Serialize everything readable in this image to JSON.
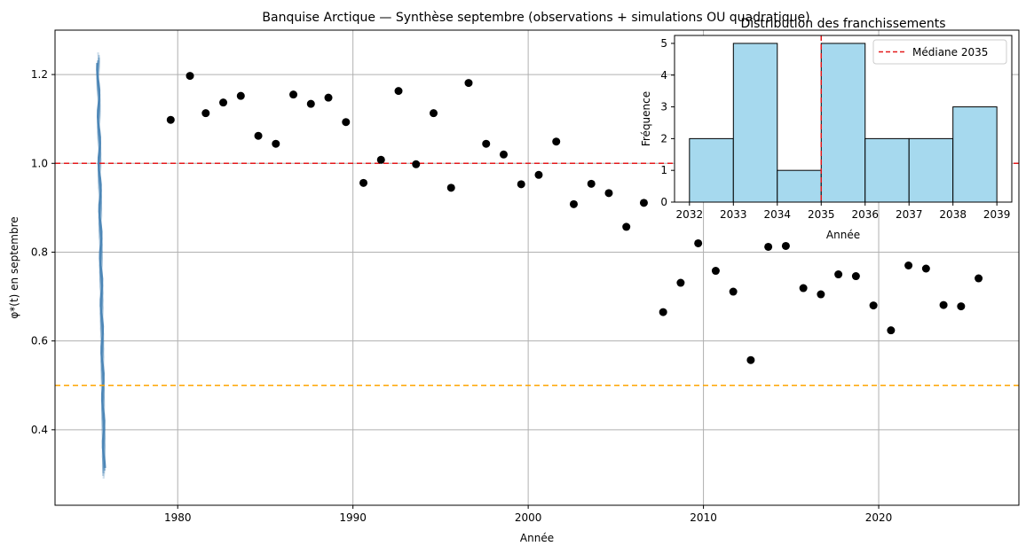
{
  "chart_data": [
    {
      "type": "scatter",
      "title": "Banquise Arctique — Synthèse septembre (observations + simulations OU quadratique)",
      "xlabel": "Année",
      "ylabel": "φ*(t) en septembre",
      "xlim": [
        1973,
        2028
      ],
      "ylim": [
        0.23,
        1.3
      ],
      "xticks": [
        "1980",
        "1990",
        "2000",
        "2010",
        "2020"
      ],
      "yticks": [
        "0.4",
        "0.6",
        "0.8",
        "1.0",
        "1.2"
      ],
      "grid": true,
      "hlines": [
        {
          "y": 1.0,
          "color": "#e41a1c",
          "style": "dashed"
        },
        {
          "y": 0.5,
          "color": "#ffa500",
          "style": "dashed"
        }
      ],
      "simulation_color": "#4682b4",
      "points_color": "#000000",
      "x": [
        1979.6,
        1980.7,
        1981.6,
        1982.6,
        1983.6,
        1984.6,
        1985.6,
        1986.6,
        1987.6,
        1988.6,
        1989.6,
        1990.6,
        1991.6,
        1992.6,
        1993.6,
        1994.6,
        1995.6,
        1996.6,
        1997.6,
        1998.6,
        1999.6,
        2000.6,
        2001.6,
        2002.6,
        2003.6,
        2004.6,
        2005.6,
        2006.6,
        2007.7,
        2008.7,
        2009.7,
        2010.7,
        2011.7,
        2012.7,
        2013.7,
        2014.7,
        2015.7,
        2016.7,
        2017.7,
        2018.7,
        2019.7,
        2020.7,
        2021.7,
        2022.7,
        2023.7,
        2024.7,
        2025.7
      ],
      "y": [
        1.098,
        1.197,
        1.113,
        1.137,
        1.152,
        1.062,
        1.044,
        1.155,
        1.134,
        1.148,
        1.093,
        0.956,
        1.008,
        1.163,
        0.998,
        1.113,
        0.945,
        1.181,
        1.044,
        1.02,
        0.953,
        0.974,
        1.049,
        0.908,
        0.954,
        0.933,
        0.857,
        0.911,
        0.665,
        0.731,
        0.82,
        0.758,
        0.711,
        0.557,
        0.812,
        0.814,
        0.719,
        0.705,
        0.75,
        0.746,
        0.68,
        0.624,
        0.77,
        0.763,
        0.681,
        0.678,
        0.741
      ]
    },
    {
      "type": "bar",
      "title": "Distribution des franchissements",
      "xlabel": "Année",
      "ylabel": "Fréquence",
      "bin_edges": [
        2032,
        2033,
        2034,
        2035,
        2036,
        2037,
        2038,
        2039
      ],
      "values": [
        2,
        5,
        1,
        5,
        2,
        2,
        3
      ],
      "xticks": [
        "2032",
        "2033",
        "2034",
        "2035",
        "2036",
        "2037",
        "2038",
        "2039"
      ],
      "yticks": [
        "0",
        "1",
        "2",
        "3",
        "4",
        "5"
      ],
      "ylim": [
        0,
        5.25
      ],
      "bar_color": "#a6d9ee",
      "median": {
        "x": 2035,
        "label": "Médiane 2035",
        "color": "#e41a1c"
      },
      "legend_position": "top-right"
    }
  ]
}
